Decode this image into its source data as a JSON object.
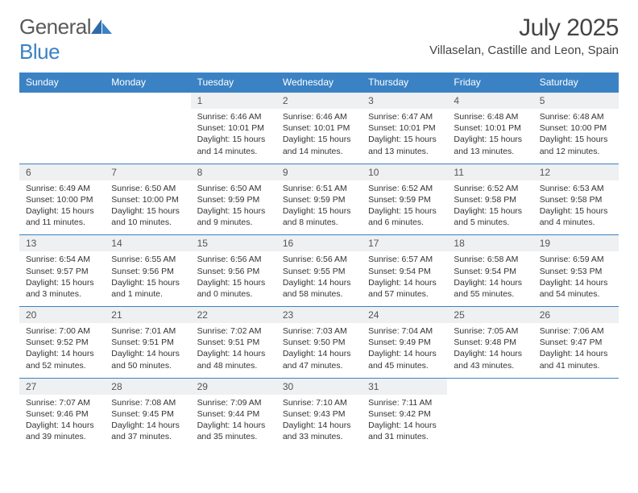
{
  "brand": {
    "name_part1": "General",
    "name_part2": "Blue"
  },
  "title": "July 2025",
  "location": "Villaselan, Castille and Leon, Spain",
  "colors": {
    "header_bg": "#3b82c4",
    "header_fg": "#ffffff",
    "daynum_bg": "#eef0f1",
    "daynum_fg": "#555555",
    "border": "#3b82c4",
    "text": "#333333",
    "logo_gray": "#5a5a5a",
    "logo_blue": "#3b82c4",
    "page_bg": "#ffffff"
  },
  "typography": {
    "title_fontsize": 30,
    "location_fontsize": 15,
    "header_fontsize": 12,
    "daynum_fontsize": 12,
    "cell_fontsize": 10.5
  },
  "weekdays": [
    "Sunday",
    "Monday",
    "Tuesday",
    "Wednesday",
    "Thursday",
    "Friday",
    "Saturday"
  ],
  "weeks": [
    [
      null,
      null,
      {
        "n": "1",
        "sr": "Sunrise: 6:46 AM",
        "ss": "Sunset: 10:01 PM",
        "dl1": "Daylight: 15 hours",
        "dl2": "and 14 minutes."
      },
      {
        "n": "2",
        "sr": "Sunrise: 6:46 AM",
        "ss": "Sunset: 10:01 PM",
        "dl1": "Daylight: 15 hours",
        "dl2": "and 14 minutes."
      },
      {
        "n": "3",
        "sr": "Sunrise: 6:47 AM",
        "ss": "Sunset: 10:01 PM",
        "dl1": "Daylight: 15 hours",
        "dl2": "and 13 minutes."
      },
      {
        "n": "4",
        "sr": "Sunrise: 6:48 AM",
        "ss": "Sunset: 10:01 PM",
        "dl1": "Daylight: 15 hours",
        "dl2": "and 13 minutes."
      },
      {
        "n": "5",
        "sr": "Sunrise: 6:48 AM",
        "ss": "Sunset: 10:00 PM",
        "dl1": "Daylight: 15 hours",
        "dl2": "and 12 minutes."
      }
    ],
    [
      {
        "n": "6",
        "sr": "Sunrise: 6:49 AM",
        "ss": "Sunset: 10:00 PM",
        "dl1": "Daylight: 15 hours",
        "dl2": "and 11 minutes."
      },
      {
        "n": "7",
        "sr": "Sunrise: 6:50 AM",
        "ss": "Sunset: 10:00 PM",
        "dl1": "Daylight: 15 hours",
        "dl2": "and 10 minutes."
      },
      {
        "n": "8",
        "sr": "Sunrise: 6:50 AM",
        "ss": "Sunset: 9:59 PM",
        "dl1": "Daylight: 15 hours",
        "dl2": "and 9 minutes."
      },
      {
        "n": "9",
        "sr": "Sunrise: 6:51 AM",
        "ss": "Sunset: 9:59 PM",
        "dl1": "Daylight: 15 hours",
        "dl2": "and 8 minutes."
      },
      {
        "n": "10",
        "sr": "Sunrise: 6:52 AM",
        "ss": "Sunset: 9:59 PM",
        "dl1": "Daylight: 15 hours",
        "dl2": "and 6 minutes."
      },
      {
        "n": "11",
        "sr": "Sunrise: 6:52 AM",
        "ss": "Sunset: 9:58 PM",
        "dl1": "Daylight: 15 hours",
        "dl2": "and 5 minutes."
      },
      {
        "n": "12",
        "sr": "Sunrise: 6:53 AM",
        "ss": "Sunset: 9:58 PM",
        "dl1": "Daylight: 15 hours",
        "dl2": "and 4 minutes."
      }
    ],
    [
      {
        "n": "13",
        "sr": "Sunrise: 6:54 AM",
        "ss": "Sunset: 9:57 PM",
        "dl1": "Daylight: 15 hours",
        "dl2": "and 3 minutes."
      },
      {
        "n": "14",
        "sr": "Sunrise: 6:55 AM",
        "ss": "Sunset: 9:56 PM",
        "dl1": "Daylight: 15 hours",
        "dl2": "and 1 minute."
      },
      {
        "n": "15",
        "sr": "Sunrise: 6:56 AM",
        "ss": "Sunset: 9:56 PM",
        "dl1": "Daylight: 15 hours",
        "dl2": "and 0 minutes."
      },
      {
        "n": "16",
        "sr": "Sunrise: 6:56 AM",
        "ss": "Sunset: 9:55 PM",
        "dl1": "Daylight: 14 hours",
        "dl2": "and 58 minutes."
      },
      {
        "n": "17",
        "sr": "Sunrise: 6:57 AM",
        "ss": "Sunset: 9:54 PM",
        "dl1": "Daylight: 14 hours",
        "dl2": "and 57 minutes."
      },
      {
        "n": "18",
        "sr": "Sunrise: 6:58 AM",
        "ss": "Sunset: 9:54 PM",
        "dl1": "Daylight: 14 hours",
        "dl2": "and 55 minutes."
      },
      {
        "n": "19",
        "sr": "Sunrise: 6:59 AM",
        "ss": "Sunset: 9:53 PM",
        "dl1": "Daylight: 14 hours",
        "dl2": "and 54 minutes."
      }
    ],
    [
      {
        "n": "20",
        "sr": "Sunrise: 7:00 AM",
        "ss": "Sunset: 9:52 PM",
        "dl1": "Daylight: 14 hours",
        "dl2": "and 52 minutes."
      },
      {
        "n": "21",
        "sr": "Sunrise: 7:01 AM",
        "ss": "Sunset: 9:51 PM",
        "dl1": "Daylight: 14 hours",
        "dl2": "and 50 minutes."
      },
      {
        "n": "22",
        "sr": "Sunrise: 7:02 AM",
        "ss": "Sunset: 9:51 PM",
        "dl1": "Daylight: 14 hours",
        "dl2": "and 48 minutes."
      },
      {
        "n": "23",
        "sr": "Sunrise: 7:03 AM",
        "ss": "Sunset: 9:50 PM",
        "dl1": "Daylight: 14 hours",
        "dl2": "and 47 minutes."
      },
      {
        "n": "24",
        "sr": "Sunrise: 7:04 AM",
        "ss": "Sunset: 9:49 PM",
        "dl1": "Daylight: 14 hours",
        "dl2": "and 45 minutes."
      },
      {
        "n": "25",
        "sr": "Sunrise: 7:05 AM",
        "ss": "Sunset: 9:48 PM",
        "dl1": "Daylight: 14 hours",
        "dl2": "and 43 minutes."
      },
      {
        "n": "26",
        "sr": "Sunrise: 7:06 AM",
        "ss": "Sunset: 9:47 PM",
        "dl1": "Daylight: 14 hours",
        "dl2": "and 41 minutes."
      }
    ],
    [
      {
        "n": "27",
        "sr": "Sunrise: 7:07 AM",
        "ss": "Sunset: 9:46 PM",
        "dl1": "Daylight: 14 hours",
        "dl2": "and 39 minutes."
      },
      {
        "n": "28",
        "sr": "Sunrise: 7:08 AM",
        "ss": "Sunset: 9:45 PM",
        "dl1": "Daylight: 14 hours",
        "dl2": "and 37 minutes."
      },
      {
        "n": "29",
        "sr": "Sunrise: 7:09 AM",
        "ss": "Sunset: 9:44 PM",
        "dl1": "Daylight: 14 hours",
        "dl2": "and 35 minutes."
      },
      {
        "n": "30",
        "sr": "Sunrise: 7:10 AM",
        "ss": "Sunset: 9:43 PM",
        "dl1": "Daylight: 14 hours",
        "dl2": "and 33 minutes."
      },
      {
        "n": "31",
        "sr": "Sunrise: 7:11 AM",
        "ss": "Sunset: 9:42 PM",
        "dl1": "Daylight: 14 hours",
        "dl2": "and 31 minutes."
      },
      null,
      null
    ]
  ]
}
